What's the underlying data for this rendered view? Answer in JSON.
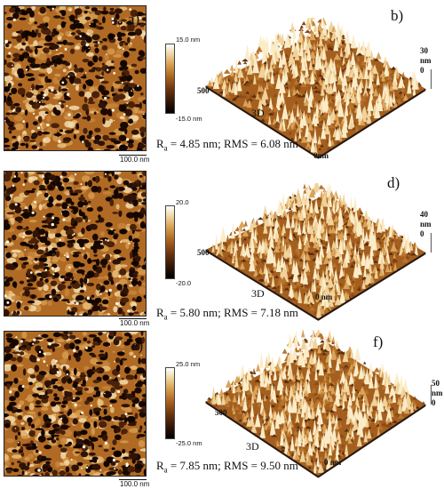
{
  "panels": [
    {
      "letter_2d": "a)",
      "letter_3d": "b)",
      "cbar_top": "15.0 nm",
      "cbar_bottom": "-15.0 nm",
      "scalebar": "100.0 nm",
      "axis_3d_z": [
        "30",
        "0"
      ],
      "axis_3d_x": "500",
      "axis_3d_origin": "0nm",
      "label_3d": "3D",
      "roughness": {
        "ra_label": "R",
        "ra_sub": "a",
        "text": " = 4.85 nm; RMS = 6.08 nm"
      },
      "colors": {
        "dark": "#1a0a02",
        "mid": "#8a4a15",
        "light": "#f4e1b8"
      }
    },
    {
      "letter_2d": "c)",
      "letter_3d": "d)",
      "cbar_top": "20.0",
      "cbar_bottom": "-20.0",
      "scalebar": "100.0 nm",
      "axis_3d_z": [
        "40",
        "0"
      ],
      "axis_3d_x": "500",
      "axis_3d_origin": "0 nm",
      "label_3d": "3D",
      "roughness": {
        "ra_label": "R",
        "ra_sub": "a",
        "text": " = 5.80 nm; RMS = 7.18 nm"
      },
      "colors": {
        "dark": "#1a0a02",
        "mid": "#8a4a15",
        "light": "#f4e1b8"
      }
    },
    {
      "letter_2d": "e)",
      "letter_3d": "f)",
      "cbar_top": "25.0 nm",
      "cbar_bottom": "-25.0 nm",
      "scalebar": "100.0 nm",
      "axis_3d_z": [
        "50",
        "0"
      ],
      "axis_3d_x": "500",
      "axis_3d_origin": "0 nm",
      "label_3d": "3D",
      "roughness": {
        "ra_label": "R",
        "ra_sub": "a",
        "text": " = 7.85 nm; RMS = 9.50 nm"
      },
      "colors": {
        "dark": "#1a0a02",
        "mid": "#8a4a15",
        "light": "#f4e1b8"
      }
    }
  ],
  "z_axis_unit": "nm"
}
